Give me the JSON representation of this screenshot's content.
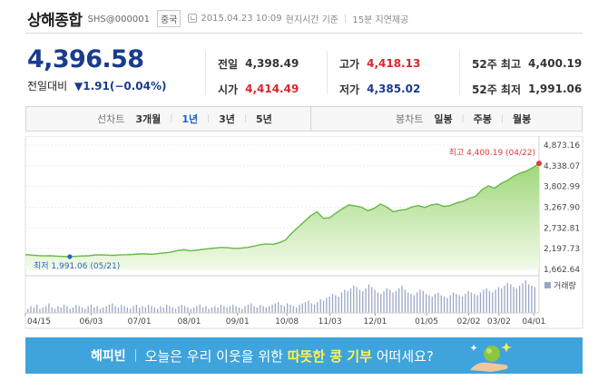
{
  "header": {
    "title": "상해종합",
    "code": "SHS@000001",
    "market_badge": "중국",
    "timestamp": "2015.04.23 10:09",
    "time_basis": "현지시간 기준",
    "delay_note": "15분 지연제공"
  },
  "quote": {
    "price": "4,396.58",
    "change_label": "전일대비",
    "change_value": "▼1.91(−0.04%)",
    "stats": [
      {
        "label": "전일",
        "value": "4,398.49",
        "color": "#333333"
      },
      {
        "label": "시가",
        "value": "4,414.49",
        "color": "#d9262c"
      },
      {
        "label": "고가",
        "value": "4,418.13",
        "color": "#d9262c"
      },
      {
        "label": "저가",
        "value": "4,385.02",
        "color": "#1a3c8c"
      },
      {
        "label": "52주 최고",
        "value": "4,400.19",
        "color": "#333333"
      },
      {
        "label": "52주 최저",
        "value": "1,991.06",
        "color": "#333333"
      }
    ]
  },
  "tabs": {
    "line_label": "선차트",
    "line_periods": [
      "3개월",
      "1년",
      "3년",
      "5년"
    ],
    "line_active": "1년",
    "candle_label": "봉차트",
    "candle_periods": [
      "일봉",
      "주봉",
      "월봉"
    ]
  },
  "chart_data": {
    "type": "area",
    "y_ticks": [
      "4,873.16",
      "4,338.07",
      "3,802.99",
      "3,267.90",
      "2,732.81",
      "2,197.73",
      "1,662.64"
    ],
    "ylim": [
      1662.64,
      4873.16
    ],
    "x_ticks": [
      "04/15",
      "06/03",
      "07/01",
      "08/01",
      "09/01",
      "10/08",
      "11/03",
      "12/01",
      "01/05",
      "02/02",
      "03/02",
      "04/01"
    ],
    "x_tick_positions": [
      0,
      0.128,
      0.222,
      0.319,
      0.413,
      0.509,
      0.593,
      0.681,
      0.781,
      0.863,
      0.922,
      0.99
    ],
    "annotations": {
      "high_label": "최고 4,400.19 (04/22)",
      "high_value": 4400.19,
      "low_label": "최저 1,991.06 (05/21)",
      "low_value": 1991.06
    },
    "series": [
      {
        "values": [
          2045,
          2030,
          2020,
          2012,
          2015,
          2005,
          1998,
          1991,
          2000,
          2010,
          2015,
          2035,
          2040,
          2030,
          2025,
          2040,
          2042,
          2050,
          2060,
          2060,
          2055,
          2075,
          2090,
          2110,
          2150,
          2170,
          2140,
          2160,
          2180,
          2200,
          2215,
          2230,
          2220,
          2205,
          2210,
          2230,
          2260,
          2300,
          2320,
          2310,
          2350,
          2420,
          2600,
          2750,
          2900,
          3050,
          3150,
          2980,
          3000,
          3120,
          3230,
          3330,
          3300,
          3270,
          3180,
          3240,
          3350,
          3270,
          3150,
          3190,
          3210,
          3280,
          3310,
          3260,
          3330,
          3350,
          3290,
          3310,
          3380,
          3420,
          3500,
          3550,
          3720,
          3820,
          3760,
          3880,
          3960,
          4070,
          4150,
          4200,
          4290,
          4400
        ]
      }
    ],
    "volume_label": "거래량",
    "volume": [
      3,
      5,
      4,
      6,
      3,
      4,
      5,
      7,
      4,
      3,
      5,
      4,
      6,
      5,
      3,
      4,
      6,
      5,
      4,
      3,
      5,
      6,
      4,
      5,
      3,
      4,
      5,
      6,
      7,
      5,
      4,
      6,
      5,
      4,
      3,
      5,
      6,
      4,
      5,
      4,
      6,
      5,
      4,
      3,
      5,
      4,
      6,
      5,
      4,
      3,
      5,
      6,
      5,
      4,
      3,
      4,
      5,
      6,
      4,
      5,
      3,
      4,
      5,
      4,
      6,
      5,
      4,
      5,
      6,
      5,
      4,
      3,
      5,
      6,
      7,
      5,
      4,
      6,
      5,
      4,
      5,
      6,
      7,
      8,
      6,
      5,
      7,
      6,
      5,
      4,
      6,
      7,
      8,
      9,
      7,
      6,
      8,
      10,
      9,
      11,
      12,
      14,
      13,
      12,
      15,
      17,
      16,
      18,
      20,
      19,
      17,
      16,
      18,
      21,
      19,
      17,
      15,
      14,
      16,
      18,
      17,
      15,
      16,
      18,
      20,
      17,
      15,
      14,
      13,
      15,
      17,
      16,
      14,
      13,
      12,
      14,
      15,
      13,
      12,
      11,
      13,
      15,
      14,
      13,
      12,
      14,
      16,
      15,
      14,
      13,
      15,
      17,
      18,
      16,
      15,
      17,
      19,
      18,
      20,
      22,
      21,
      19,
      18,
      20,
      22,
      24,
      21,
      20,
      19
    ]
  },
  "banner": {
    "brand": "해피빈",
    "message_prefix": "오늘은 우리 이웃을 위한 ",
    "message_highlight": "따뜻한 콩 기부",
    "message_suffix": " 어떠세요?"
  }
}
